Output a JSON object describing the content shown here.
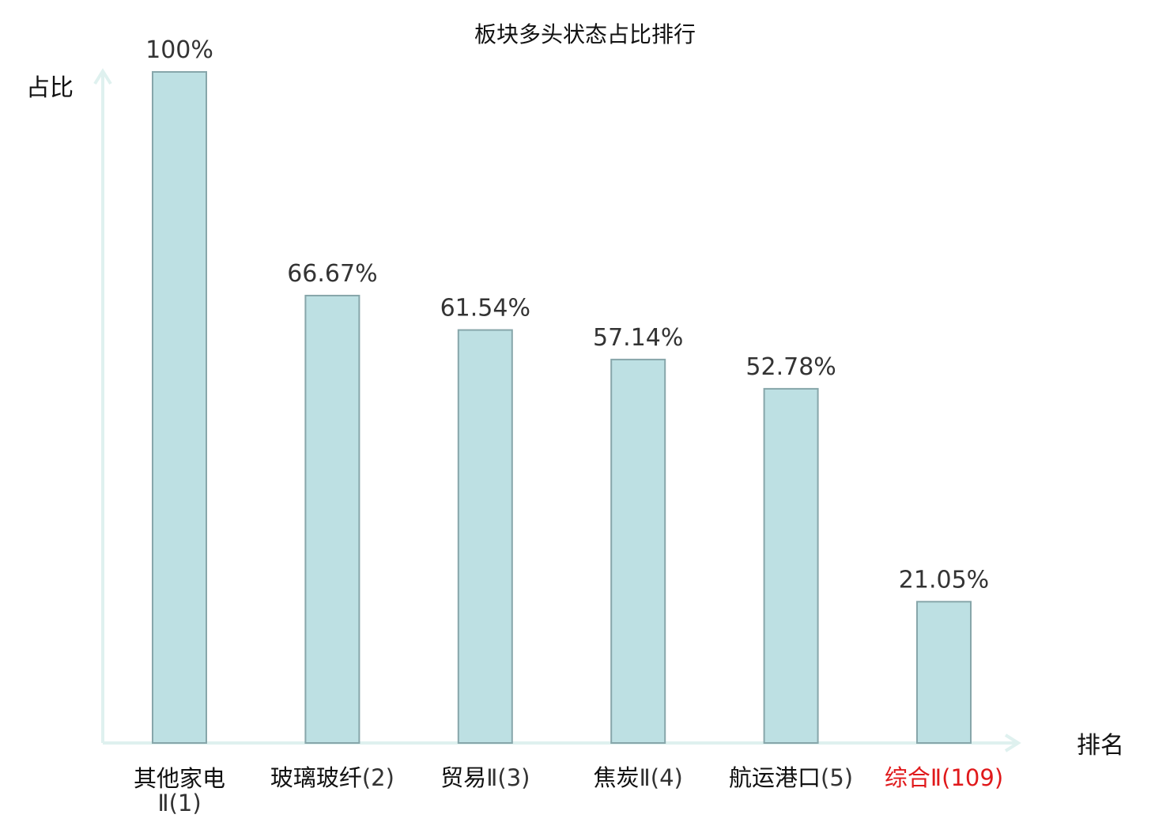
{
  "chart_data": {
    "type": "bar",
    "title": "板块多头状态占比排行",
    "ylabel": "占比",
    "xlabel": "排名",
    "ylim": [
      0,
      100
    ],
    "grid": false,
    "categories": [
      {
        "name": "其他家电",
        "suffix": "Ⅱ",
        "rank": "(1)"
      },
      {
        "name": "玻璃玻纤",
        "suffix": "",
        "rank": "(2)"
      },
      {
        "name": "贸易",
        "suffix": "Ⅱ",
        "rank": "(3)"
      },
      {
        "name": "焦炭",
        "suffix": "Ⅱ",
        "rank": "(4)"
      },
      {
        "name": "航运港口",
        "suffix": "",
        "rank": "(5)"
      },
      {
        "name": "综合",
        "suffix": "Ⅱ",
        "rank": "(109)"
      }
    ],
    "values": [
      100,
      66.67,
      61.54,
      57.14,
      52.78,
      21.05
    ],
    "value_labels": [
      "100%",
      "66.67%",
      "61.54%",
      "57.14%",
      "52.78%",
      "21.05%"
    ],
    "highlight_index": 5,
    "colors": {
      "bar_fill": "#bde0e3",
      "bar_stroke": "#87a6aa",
      "axis": "#dff1ef",
      "highlight_text": "#e0191b",
      "text": "#111111",
      "rank_text": "#333333"
    }
  }
}
